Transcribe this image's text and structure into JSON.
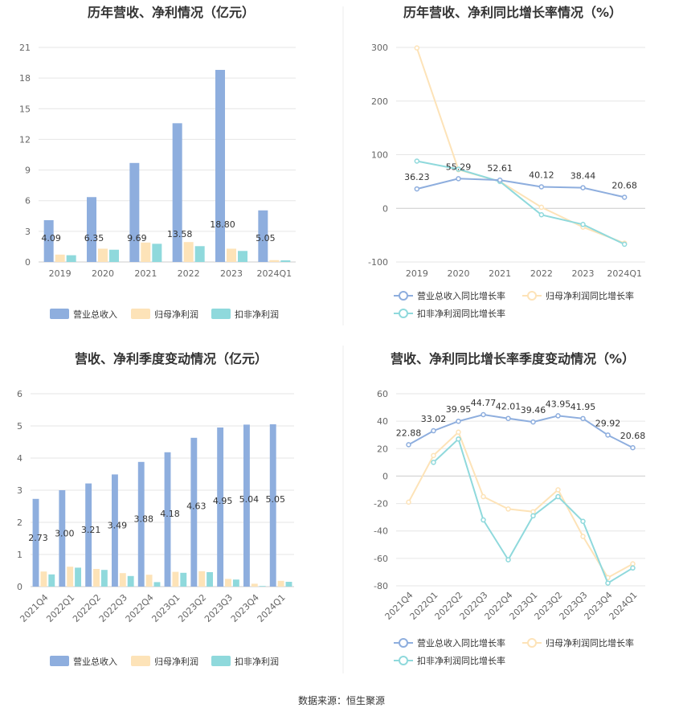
{
  "footer": "数据来源：恒生聚源",
  "colors": {
    "revenue": "#8eaede",
    "parent": "#fde3b8",
    "deducted": "#8fd9dc"
  },
  "chart_data": [
    {
      "type": "bar",
      "title": "历年营收、净利情况（亿元）",
      "categories": [
        "2019",
        "2020",
        "2021",
        "2022",
        "2023",
        "2024Q1"
      ],
      "ylim": [
        0,
        21
      ],
      "yticks": [
        "0",
        "3",
        "6",
        "9",
        "12",
        "15",
        "18",
        "21"
      ],
      "series": [
        {
          "name": "营业总收入",
          "values": [
            4.09,
            6.35,
            9.69,
            13.58,
            18.8,
            5.05
          ],
          "labels": [
            "4.09",
            "6.35",
            "9.69",
            "13.58",
            "18.80",
            "5.05"
          ]
        },
        {
          "name": "归母净利润",
          "values": [
            0.72,
            1.3,
            1.9,
            1.95,
            1.3,
            0.18
          ]
        },
        {
          "name": "扣非净利润",
          "values": [
            0.66,
            1.2,
            1.78,
            1.55,
            1.08,
            0.16
          ]
        }
      ]
    },
    {
      "type": "line",
      "title": "历年营收、净利同比增长率情况（%）",
      "categories": [
        "2019",
        "2020",
        "2021",
        "2022",
        "2023",
        "2024Q1"
      ],
      "ylim": [
        -100,
        300
      ],
      "yticks": [
        "-100",
        "0",
        "100",
        "200",
        "300"
      ],
      "series": [
        {
          "name": "营业总收入同比增长率",
          "values": [
            36.23,
            55.29,
            52.61,
            40.12,
            38.44,
            20.68
          ],
          "labels": [
            "36.23",
            "55.29",
            "52.61",
            "40.12",
            "38.44",
            "20.68"
          ]
        },
        {
          "name": "归母净利润同比增长率",
          "values": [
            299,
            72,
            50,
            2,
            -35,
            -65
          ]
        },
        {
          "name": "扣非净利润同比增长率",
          "values": [
            88,
            73,
            50,
            -12,
            -30,
            -67
          ]
        }
      ]
    },
    {
      "type": "bar",
      "title": "营收、净利季度变动情况（亿元）",
      "categories": [
        "2021Q4",
        "2022Q1",
        "2022Q2",
        "2022Q3",
        "2022Q4",
        "2023Q1",
        "2023Q2",
        "2023Q3",
        "2023Q4",
        "2024Q1"
      ],
      "ylim": [
        0,
        6
      ],
      "yticks": [
        "0",
        "1",
        "2",
        "3",
        "4",
        "5",
        "6"
      ],
      "series": [
        {
          "name": "营业总收入",
          "values": [
            2.73,
            3.0,
            3.21,
            3.49,
            3.88,
            4.18,
            4.63,
            4.95,
            5.04,
            5.05
          ],
          "labels": [
            "2.73",
            "3.00",
            "3.21",
            "3.49",
            "3.88",
            "4.18",
            "4.63",
            "4.95",
            "5.04",
            "5.05"
          ]
        },
        {
          "name": "归母净利润",
          "values": [
            0.47,
            0.62,
            0.55,
            0.42,
            0.37,
            0.46,
            0.48,
            0.24,
            0.09,
            0.18
          ]
        },
        {
          "name": "扣非净利润",
          "values": [
            0.38,
            0.59,
            0.52,
            0.33,
            0.14,
            0.43,
            0.45,
            0.22,
            0.02,
            0.15
          ]
        }
      ]
    },
    {
      "type": "line",
      "title": "营收、净利同比增长率季度变动情况（%）",
      "categories": [
        "2021Q4",
        "2022Q1",
        "2022Q2",
        "2022Q3",
        "2022Q4",
        "2023Q1",
        "2023Q2",
        "2023Q3",
        "2023Q4",
        "2024Q1"
      ],
      "ylim": [
        -80,
        60
      ],
      "yticks": [
        "-80",
        "-60",
        "-40",
        "-20",
        "0",
        "20",
        "40",
        "60"
      ],
      "series": [
        {
          "name": "营业总收入同比增长率",
          "values": [
            22.88,
            33.02,
            39.95,
            44.77,
            42.01,
            39.46,
            43.95,
            41.95,
            29.92,
            20.68
          ],
          "labels": [
            "22.88",
            "33.02",
            "39.95",
            "44.77",
            "42.01",
            "39.46",
            "43.95",
            "41.95",
            "29.92",
            "20.68"
          ]
        },
        {
          "name": "归母净利润同比增长率",
          "values": [
            -19,
            15,
            32,
            -15,
            -24,
            -26,
            -10,
            -44,
            -74,
            -64
          ]
        },
        {
          "name": "扣非净利润同比增长率",
          "values": [
            null,
            10,
            27,
            -32,
            -61,
            -29,
            -15,
            -33,
            -78,
            -67
          ]
        }
      ]
    }
  ]
}
